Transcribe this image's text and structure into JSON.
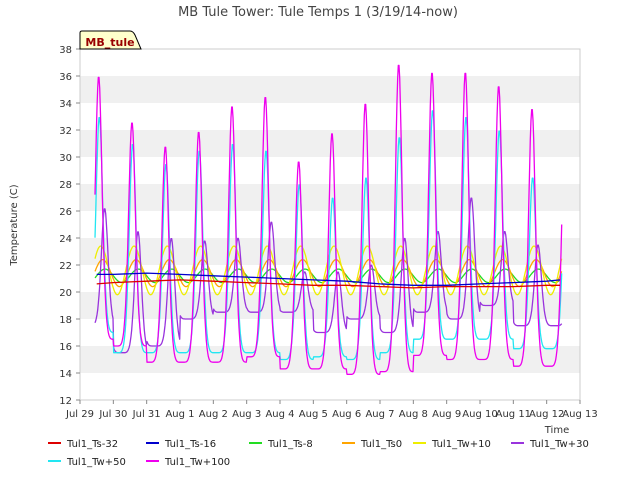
{
  "chart_data": {
    "type": "line",
    "title": "MB Tule Tower: Tule Temps 1 (3/19/14-now)",
    "xlabel": "Time",
    "ylabel": "Temperature (C)",
    "ylim": [
      12,
      38
    ],
    "yticks": [
      12,
      14,
      16,
      18,
      20,
      22,
      24,
      26,
      28,
      30,
      32,
      34,
      36,
      38
    ],
    "xlim": [
      0,
      15
    ],
    "xticks": [
      0,
      1,
      2,
      3,
      4,
      5,
      6,
      7,
      8,
      9,
      10,
      11,
      12,
      13,
      14,
      15
    ],
    "xtick_labels": [
      "Jul 29",
      "Jul 30",
      "Jul 31",
      "Aug 1",
      "Aug 2",
      "Aug 3",
      "Aug 4",
      "Aug 5",
      "Aug 6",
      "Aug 7",
      "Aug 8",
      "Aug 9",
      "Aug 10",
      "Aug 11",
      "Aug 12",
      "Aug 13"
    ],
    "grid": "horizontal bands",
    "badge": "MB_tule",
    "legend_position": "bottom",
    "series": [
      {
        "name": "Tul1_Ts-32",
        "color": "#dd0000",
        "x": [
          0.5,
          1,
          2,
          3,
          4,
          5,
          6,
          7,
          8,
          9,
          10,
          11,
          12,
          13,
          14,
          14.4
        ],
        "y": [
          20.6,
          20.7,
          20.8,
          20.9,
          20.8,
          20.7,
          20.6,
          20.5,
          20.5,
          20.4,
          20.3,
          20.4,
          20.4,
          20.4,
          20.5,
          20.5
        ]
      },
      {
        "name": "Tul1_Ts-16",
        "color": "#0000cc",
        "x": [
          0.5,
          1,
          2,
          3,
          4,
          5,
          6,
          7,
          8,
          9,
          10,
          11,
          12,
          13,
          14,
          14.4
        ],
        "y": [
          21.3,
          21.3,
          21.4,
          21.3,
          21.2,
          21.1,
          21.0,
          20.9,
          20.8,
          20.6,
          20.5,
          20.5,
          20.6,
          20.7,
          20.8,
          20.9
        ]
      }
    ],
    "diurnal_series": [
      {
        "name": "Tul1_Ts-8",
        "color": "#22dd22",
        "base": 21.2,
        "amp": 0.5,
        "peak_phase": 0.75
      },
      {
        "name": "Tul1_Ts0",
        "color": "#ffa500",
        "base": 21.4,
        "amp": 1.0,
        "peak_phase": 0.68
      },
      {
        "name": "Tul1_Tw+10",
        "color": "#eeee00",
        "base": 21.6,
        "amp": 1.8,
        "peak_phase": 0.62
      },
      {
        "name": "Tul1_Tw+30",
        "color": "#9933dd",
        "min": [
          17.5,
          15.5,
          16.0,
          18.0,
          18.5,
          18.5,
          18.5,
          17.0,
          18.0,
          17.0,
          18.5,
          18.0,
          19.0,
          17.5
        ],
        "max": [
          26.2,
          24.5,
          24.0,
          23.8,
          24.0,
          25.2,
          21.5,
          21.5,
          22.0,
          24.0,
          24.5,
          27.0,
          24.5,
          23.5
        ],
        "peak_phase": 0.74
      },
      {
        "name": "Tul1_Tw+50",
        "color": "#22e6f2",
        "min": [
          17.0,
          15.5,
          15.5,
          15.5,
          15.5,
          15.5,
          15.0,
          15.2,
          15.0,
          15.5,
          16.5,
          16.5,
          16.5,
          15.8
        ],
        "max": [
          33.0,
          31.0,
          29.5,
          30.5,
          31.0,
          30.5,
          28.0,
          27.0,
          28.5,
          31.5,
          33.5,
          33.0,
          32.0,
          28.5
        ],
        "peak_phase": 0.58
      },
      {
        "name": "Tul1_Tw+100",
        "color": "#ee00ee",
        "min": [
          16.5,
          16.0,
          14.8,
          14.8,
          14.8,
          15.2,
          14.3,
          14.3,
          13.9,
          14.1,
          15.3,
          15.0,
          15.0,
          14.5
        ],
        "max": [
          36.0,
          32.6,
          30.8,
          31.9,
          33.8,
          34.5,
          29.7,
          31.8,
          34.0,
          36.9,
          36.3,
          36.3,
          35.3,
          33.6
        ],
        "peak_phase": 0.56
      }
    ],
    "start_offset": 0.45,
    "end_offset": 14.45
  }
}
